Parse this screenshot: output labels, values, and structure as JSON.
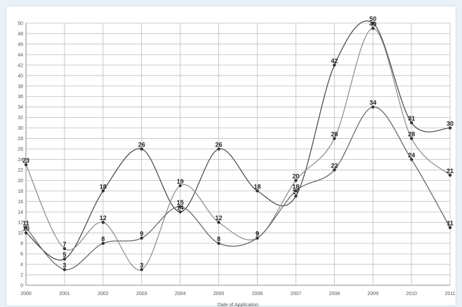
{
  "chart_data": {
    "type": "line",
    "title": "",
    "xlabel": "Date of Application",
    "ylabel": "",
    "ylim": [
      0,
      50
    ],
    "yticks": [
      0,
      2,
      4,
      6,
      8,
      10,
      12,
      14,
      16,
      18,
      20,
      22,
      24,
      26,
      28,
      30,
      32,
      34,
      36,
      38,
      40,
      42,
      44,
      46,
      48,
      50
    ],
    "categories": [
      "2000",
      "2001",
      "2002",
      "2003",
      "2004",
      "2005",
      "2006",
      "2007",
      "2008",
      "2009",
      "2010",
      "2011"
    ],
    "grid": true,
    "legend": "none",
    "series": [
      {
        "color": "#444444",
        "values": [
          10,
          5,
          18,
          26,
          14,
          26,
          18,
          17,
          42,
          50,
          31,
          30
        ],
        "labels": [
          "10",
          "5",
          "18",
          "26",
          "14",
          "26",
          "18",
          "17",
          "42",
          "50",
          "31",
          "30"
        ]
      },
      {
        "color": "#8a8a8a",
        "values": [
          23,
          7,
          12,
          3,
          19,
          12,
          9,
          20,
          28,
          49,
          28,
          21
        ],
        "labels": [
          "23",
          "7",
          "12",
          "3",
          "19",
          "12",
          "9",
          "20",
          "28",
          "49",
          "28",
          "21"
        ]
      },
      {
        "color": "#5f5f5f",
        "values": [
          11,
          3,
          8,
          9,
          15,
          8,
          9,
          18,
          22,
          34,
          24,
          11
        ],
        "labels": [
          "11",
          "3",
          "8",
          "9",
          "15",
          "8",
          "9",
          "18",
          "22",
          "34",
          "24",
          "11"
        ]
      }
    ]
  }
}
